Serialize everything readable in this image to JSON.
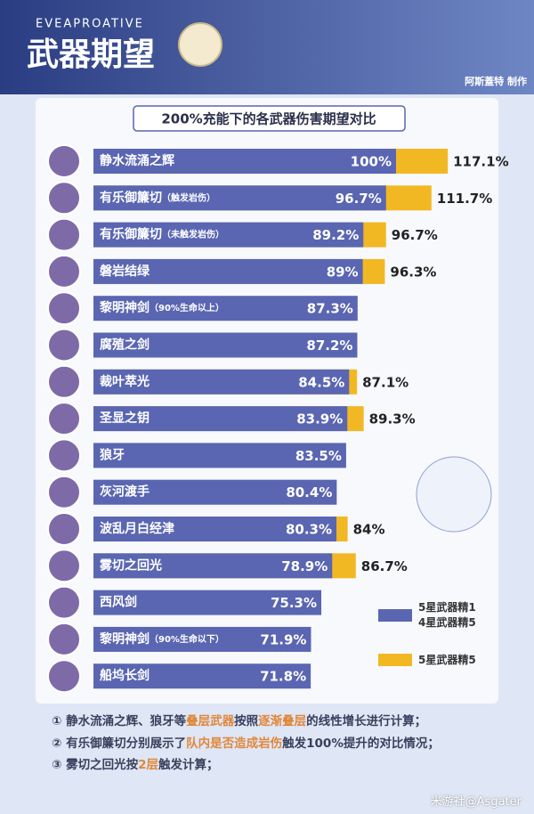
{
  "header": {
    "brand": "EVEAPROATIVE",
    "title": "武器期望",
    "credit": "阿斯蓋特 制作"
  },
  "chart_data": {
    "type": "bar",
    "orientation": "horizontal",
    "overlap": true,
    "title": "200%充能下的各武器伤害期望对比",
    "categories": [
      "静水流涌之辉",
      "有乐御簾切",
      "有乐御簾切",
      "磐岩结绿",
      "黎明神剑",
      "腐殖之剑",
      "裁叶萃光",
      "圣显之钥",
      "狼牙",
      "灰河渡手",
      "波乱月白经津",
      "雾切之回光",
      "西风剑",
      "黎明神剑",
      "船坞长剑"
    ],
    "category_notes": [
      null,
      "（触发岩伤）",
      "（未触发岩伤）",
      null,
      "（90%生命以上）",
      null,
      null,
      null,
      null,
      null,
      null,
      null,
      null,
      "（90%生命以下）",
      null
    ],
    "xlim": [
      0,
      145
    ],
    "series": [
      {
        "name": "5星武器精1\n4星武器精5",
        "color": "#5a66b1",
        "values": [
          100,
          96.7,
          89.2,
          89,
          87.3,
          87.2,
          84.5,
          83.9,
          83.5,
          80.4,
          80.3,
          78.9,
          75.3,
          71.9,
          71.8
        ],
        "value_labels": [
          "100%",
          "96.7%",
          "89.2%",
          "89%",
          "87.3%",
          "87.2%",
          "84.5%",
          "83.9%",
          "83.5%",
          "80.4%",
          "80.3%",
          "78.9%",
          "75.3%",
          "71.9%",
          "71.8%"
        ]
      },
      {
        "name": "5星武器精5",
        "color": "#f2b823",
        "values": [
          117.1,
          111.7,
          96.7,
          96.3,
          null,
          null,
          87.1,
          89.3,
          null,
          null,
          84,
          86.7,
          null,
          null,
          null
        ],
        "value_labels": [
          "117.1%",
          "111.7%",
          "96.7%",
          "96.3%",
          null,
          null,
          "87.1%",
          "89.3%",
          null,
          null,
          "84%",
          "86.7%",
          null,
          null,
          null
        ]
      }
    ]
  },
  "notes": [
    [
      {
        "text": "① 静水流涌之辉、狼牙等",
        "highlight": false
      },
      {
        "text": "叠层武器",
        "highlight": true
      },
      {
        "text": "按照",
        "highlight": false
      },
      {
        "text": "逐渐叠层",
        "highlight": true
      },
      {
        "text": "的线性增长进行计算；",
        "highlight": false
      }
    ],
    [
      {
        "text": "② 有乐御簾切分别展示了",
        "highlight": false
      },
      {
        "text": "队内是否造成岩伤",
        "highlight": true
      },
      {
        "text": "触发100%提升的对比情况；",
        "highlight": false
      }
    ],
    [
      {
        "text": "③ 雾切之回光按",
        "highlight": false
      },
      {
        "text": "2层",
        "highlight": true
      },
      {
        "text": "触发计算；",
        "highlight": false
      }
    ]
  ],
  "watermark": "米游社@Asgater"
}
